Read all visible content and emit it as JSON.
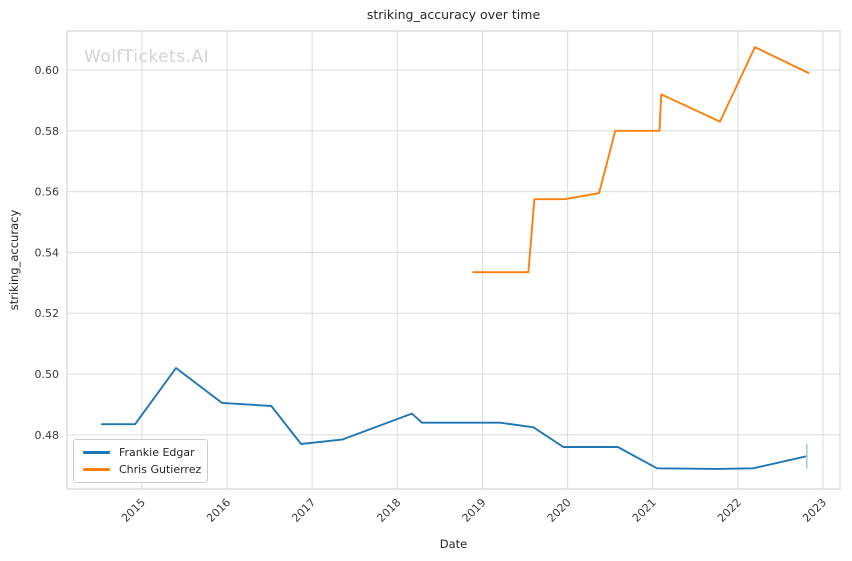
{
  "title": "striking_accuracy over time",
  "watermark": "WolfTickets.AI",
  "axes": {
    "xlabel": "Date",
    "ylabel": "striking_accuracy"
  },
  "legend": {
    "items": [
      {
        "label": "Frankie Edgar",
        "color": "#1f77b4"
      },
      {
        "label": "Chris Gutierrez",
        "color": "#ff7f0e"
      }
    ]
  },
  "colors": {
    "grid": "#dcdcdc",
    "spine": "#cccccc",
    "tick_text": "#3a3a3a",
    "title_text": "#262626",
    "watermark": "#d2d2d2",
    "end_tick": "#a8cce4"
  },
  "chart_data": {
    "type": "line",
    "title": "striking_accuracy over time",
    "xlabel": "Date",
    "ylabel": "striking_accuracy",
    "grid": true,
    "legend_position": "lower-left",
    "xlim": [
      2014.12,
      2023.2
    ],
    "ylim": [
      0.4622,
      0.6128
    ],
    "x_ticks": [
      2015,
      2016,
      2017,
      2018,
      2019,
      2020,
      2021,
      2022,
      2023
    ],
    "y_ticks": [
      0.48,
      0.5,
      0.52,
      0.54,
      0.56,
      0.58,
      0.6
    ],
    "series": [
      {
        "name": "Frankie Edgar",
        "color": "#1f77b4",
        "points": [
          [
            2014.53,
            0.4835
          ],
          [
            2014.92,
            0.4835
          ],
          [
            2015.4,
            0.502
          ],
          [
            2015.94,
            0.4905
          ],
          [
            2016.52,
            0.4895
          ],
          [
            2016.87,
            0.477
          ],
          [
            2017.36,
            0.4785
          ],
          [
            2018.17,
            0.487
          ],
          [
            2018.29,
            0.484
          ],
          [
            2019.21,
            0.484
          ],
          [
            2019.6,
            0.4825
          ],
          [
            2019.95,
            0.476
          ],
          [
            2020.59,
            0.476
          ],
          [
            2021.05,
            0.469
          ],
          [
            2021.76,
            0.4688
          ],
          [
            2022.18,
            0.469
          ],
          [
            2022.81,
            0.473
          ]
        ]
      },
      {
        "name": "Chris Gutierrez",
        "color": "#ff7f0e",
        "points": [
          [
            2018.89,
            0.5335
          ],
          [
            2019.54,
            0.5335
          ],
          [
            2019.61,
            0.5575
          ],
          [
            2019.97,
            0.5575
          ],
          [
            2020.37,
            0.5595
          ],
          [
            2020.56,
            0.58
          ],
          [
            2021.08,
            0.58
          ],
          [
            2021.1,
            0.592
          ],
          [
            2021.79,
            0.583
          ],
          [
            2022.2,
            0.6075
          ],
          [
            2022.83,
            0.599
          ]
        ]
      }
    ],
    "end_tick": {
      "series": "Frankie Edgar",
      "x": 2022.81,
      "y": 0.473,
      "half_height": 0.0041
    }
  }
}
